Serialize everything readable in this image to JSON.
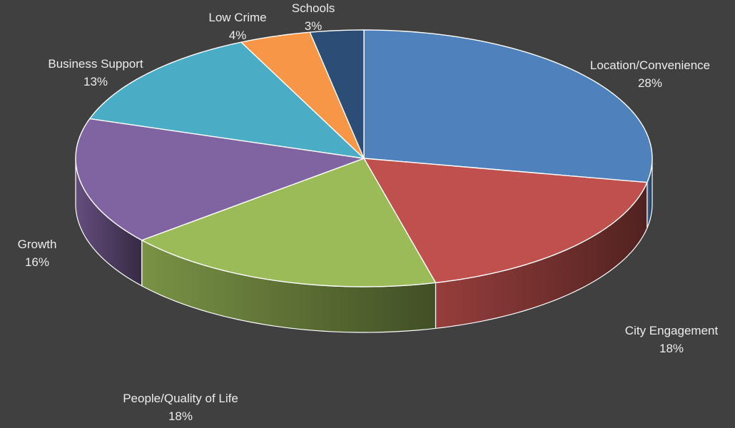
{
  "chart_data": {
    "type": "pie",
    "style": "3d-exploded-none",
    "labels": [
      "Location/Convenience",
      "City Engagement",
      "People/Quality of Life",
      "Growth",
      "Business Support",
      "Low Crime",
      "Schools"
    ],
    "values": [
      28,
      18,
      18,
      16,
      13,
      4,
      3
    ],
    "value_labels": [
      "28%",
      "18%",
      "18%",
      "16%",
      "13%",
      "4%",
      "3%"
    ],
    "colors": [
      "#4f81bd",
      "#c0504d",
      "#9bbb59",
      "#8064a2",
      "#4bacc6",
      "#f79646",
      "#2c4d75"
    ],
    "legend": "none",
    "data_labels": "outside",
    "start_angle": "12 o'clock, clockwise"
  }
}
